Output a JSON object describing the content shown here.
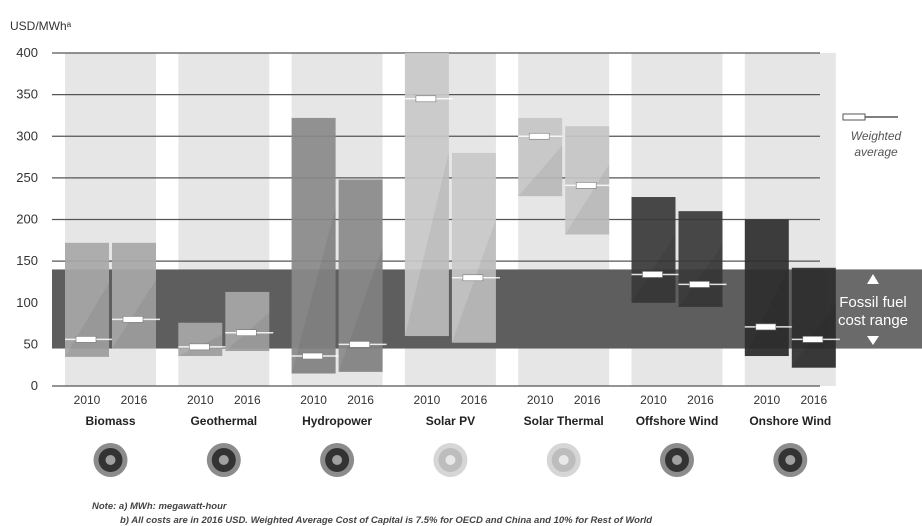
{
  "chart_data": {
    "type": "bar",
    "ylabel": "USD/MWhᵃ",
    "ylim": [
      0,
      400
    ],
    "yticks": [
      0,
      50,
      100,
      150,
      200,
      250,
      300,
      350,
      400
    ],
    "grid": true,
    "years": [
      "2010",
      "2016"
    ],
    "categories": [
      "Biomass",
      "Geothermal",
      "Hydropower",
      "Solar PV",
      "Solar Thermal",
      "Offshore Wind",
      "Onshore Wind"
    ],
    "series": [
      {
        "category": "Biomass",
        "color": "#a8a8a8",
        "ranges": [
          [
            35,
            172
          ],
          [
            45,
            172
          ]
        ],
        "weighted_average": [
          56,
          80
        ]
      },
      {
        "category": "Geothermal",
        "color": "#a8a8a8",
        "ranges": [
          [
            36,
            76
          ],
          [
            42,
            113
          ]
        ],
        "weighted_average": [
          47,
          64
        ]
      },
      {
        "category": "Hydropower",
        "color": "#8a8a8a",
        "ranges": [
          [
            15,
            322
          ],
          [
            17,
            248
          ]
        ],
        "weighted_average": [
          36,
          50
        ]
      },
      {
        "category": "Solar PV",
        "color": "#c9c9c9",
        "ranges": [
          [
            60,
            400
          ],
          [
            52,
            280
          ]
        ],
        "weighted_average": [
          345,
          130
        ]
      },
      {
        "category": "Solar Thermal",
        "color": "#c6c6c6",
        "ranges": [
          [
            228,
            322
          ],
          [
            182,
            312
          ]
        ],
        "weighted_average": [
          300,
          241
        ]
      },
      {
        "category": "Offshore Wind",
        "color": "#3a3a3a",
        "ranges": [
          [
            100,
            227
          ],
          [
            95,
            210
          ]
        ],
        "weighted_average": [
          134,
          122
        ]
      },
      {
        "category": "Onshore Wind",
        "color": "#2e2e2e",
        "ranges": [
          [
            36,
            200
          ],
          [
            22,
            142
          ]
        ],
        "weighted_average": [
          71,
          56
        ]
      }
    ],
    "fossil_fuel_range": [
      45,
      140
    ],
    "legend": {
      "weighted_average": "Weighted average",
      "fossil_fuel": "Fossil fuel cost range"
    }
  },
  "notes": {
    "a": "Note: a) MWh: megawatt-hour",
    "b": "b) All costs are in 2016 USD. Weighted Average Cost of Capital is 7.5% for OECD and China and 10% for Rest of World"
  },
  "icons": [
    "biomass-icon",
    "geothermal-icon",
    "hydropower-icon",
    "solar-pv-icon",
    "solar-thermal-icon",
    "offshore-wind-icon",
    "onshore-wind-icon"
  ]
}
